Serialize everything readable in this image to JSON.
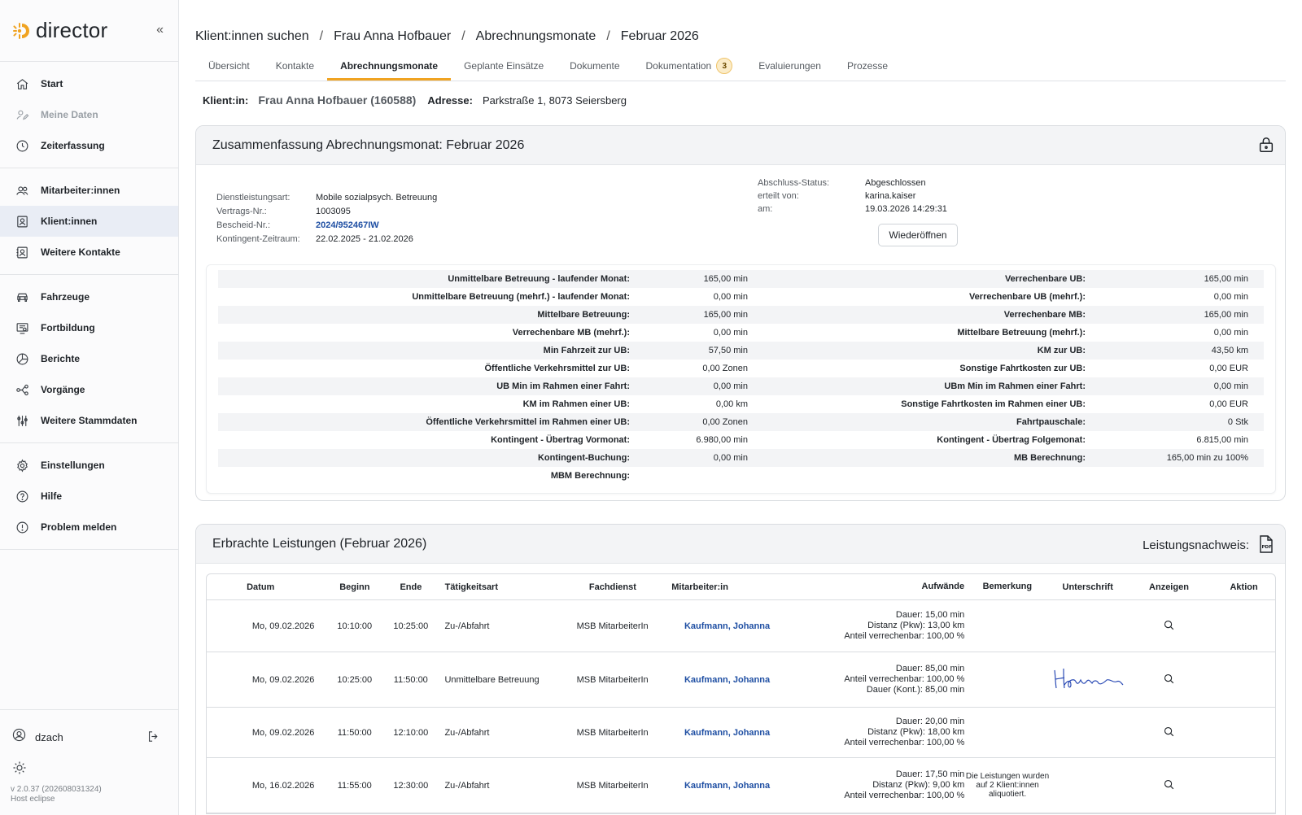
{
  "app": {
    "name": "director"
  },
  "sidebar": {
    "groups": [
      [
        {
          "label": "Start",
          "icon": "home-icon",
          "disabled": false,
          "active": false
        },
        {
          "label": "Meine Daten",
          "icon": "user-edit-icon",
          "disabled": true,
          "active": false
        },
        {
          "label": "Zeiterfassung",
          "icon": "clock-icon",
          "disabled": false,
          "active": false
        }
      ],
      [
        {
          "label": "Mitarbeiter:innen",
          "icon": "users-icon",
          "disabled": false,
          "active": false
        },
        {
          "label": "Klient:innen",
          "icon": "client-card-icon",
          "disabled": false,
          "active": true
        },
        {
          "label": "Weitere Kontakte",
          "icon": "contacts-icon",
          "disabled": false,
          "active": false
        }
      ],
      [
        {
          "label": "Fahrzeuge",
          "icon": "car-icon",
          "disabled": false,
          "active": false
        },
        {
          "label": "Fortbildung",
          "icon": "training-icon",
          "disabled": false,
          "active": false
        },
        {
          "label": "Berichte",
          "icon": "reports-icon",
          "disabled": false,
          "active": false
        },
        {
          "label": "Vorgänge",
          "icon": "workflow-icon",
          "disabled": false,
          "active": false
        },
        {
          "label": "Weitere Stammdaten",
          "icon": "sliders-icon",
          "disabled": false,
          "active": false
        }
      ],
      [
        {
          "label": "Einstellungen",
          "icon": "gear-icon",
          "disabled": false,
          "active": false
        },
        {
          "label": "Hilfe",
          "icon": "help-icon",
          "disabled": false,
          "active": false
        },
        {
          "label": "Problem melden",
          "icon": "alert-icon",
          "disabled": false,
          "active": false
        }
      ]
    ],
    "user": "dzach",
    "version": "v 2.0.37 (202608031324)",
    "host": "Host eclipse"
  },
  "breadcrumb": [
    "Klient:innen suchen",
    "Frau Anna Hofbauer",
    "Abrechnungsmonate",
    "Februar 2026"
  ],
  "tabs": [
    {
      "label": "Übersicht",
      "active": false
    },
    {
      "label": "Kontakte",
      "active": false
    },
    {
      "label": "Abrechnungsmonate",
      "active": true
    },
    {
      "label": "Geplante Einsätze",
      "active": false
    },
    {
      "label": "Dokumente",
      "active": false
    },
    {
      "label": "Dokumentation",
      "active": false,
      "badge": "3"
    },
    {
      "label": "Evaluierungen",
      "active": false
    },
    {
      "label": "Prozesse",
      "active": false
    }
  ],
  "client": {
    "label": "Klient:in:",
    "name": "Frau Anna Hofbauer (160588)",
    "address_label": "Adresse:",
    "address": "Parkstraße 1, 8073 Seiersberg"
  },
  "summary": {
    "title": "Zusammenfassung Abrechnungsmonat: Februar 2026",
    "meta_left": [
      {
        "k": "Dienstleistungsart:",
        "v": "Mobile sozialpsych. Betreuung",
        "link": false
      },
      {
        "k": "Vertrags-Nr.:",
        "v": "1003095",
        "link": false
      },
      {
        "k": "Bescheid-Nr.:",
        "v": "2024/952467IW",
        "link": true
      },
      {
        "k": "Kontingent-Zeitraum:",
        "v": "22.02.2025 - 21.02.2026",
        "link": false
      }
    ],
    "meta_right": [
      {
        "k": "Abschluss-Status:",
        "v": "Abgeschlossen"
      },
      {
        "k": "erteilt von:",
        "v": "karina.kaiser"
      },
      {
        "k": "am:",
        "v": "19.03.2026 14:29:31"
      }
    ],
    "reopen_label": "Wiederöffnen",
    "stats": [
      {
        "l": "Unmittelbare Betreuung - laufender Monat:",
        "lv": "165,00 min",
        "r": "Verrechenbare UB:",
        "rv": "165,00 min"
      },
      {
        "l": "Unmittelbare Betreuung (mehrf.) - laufender Monat:",
        "lv": "0,00 min",
        "r": "Verrechenbare UB (mehrf.):",
        "rv": "0,00 min"
      },
      {
        "l": "Mittelbare Betreuung:",
        "lv": "165,00 min",
        "r": "Verrechenbare MB:",
        "rv": "165,00 min"
      },
      {
        "l": "Verrechenbare MB (mehrf.):",
        "lv": "0,00 min",
        "r": "Mittelbare Betreuung (mehrf.):",
        "rv": "0,00 min"
      },
      {
        "l": "Min Fahrzeit zur UB:",
        "lv": "57,50 min",
        "r": "KM zur UB:",
        "rv": "43,50 km"
      },
      {
        "l": "Öffentliche Verkehrsmittel zur UB:",
        "lv": "0,00 Zonen",
        "r": "Sonstige Fahrtkosten zur UB:",
        "rv": "0,00 EUR"
      },
      {
        "l": "UB Min im Rahmen einer Fahrt:",
        "lv": "0,00 min",
        "r": "UBm Min im Rahmen einer Fahrt:",
        "rv": "0,00 min"
      },
      {
        "l": "KM im Rahmen einer UB:",
        "lv": "0,00 km",
        "r": "Sonstige Fahrtkosten im Rahmen einer UB:",
        "rv": "0,00 EUR"
      },
      {
        "l": "Öffentliche Verkehrsmittel im Rahmen einer UB:",
        "lv": "0,00 Zonen",
        "r": "Fahrtpauschale:",
        "rv": "0 Stk"
      },
      {
        "l": "Kontingent - Übertrag Vormonat:",
        "lv": "6.980,00 min",
        "r": "Kontingent - Übertrag Folgemonat:",
        "rv": "6.815,00 min"
      },
      {
        "l": "Kontingent-Buchung:",
        "lv": "0,00 min",
        "r": "MB Berechnung:",
        "rv": "165,00 min zu 100%"
      },
      {
        "l": "MBM Berechnung:",
        "lv": "",
        "r": "",
        "rv": ""
      }
    ]
  },
  "services": {
    "title": "Erbrachte Leistungen (Februar 2026)",
    "proof_label": "Leistungsnachweis:",
    "columns": {
      "date": "Datum",
      "begin": "Beginn",
      "end": "Ende",
      "activity": "Tätigkeitsart",
      "service": "Fachdienst",
      "employee": "Mitarbeiter:in",
      "effort": "Aufwände",
      "remark": "Bemerkung",
      "signature": "Unterschrift",
      "show": "Anzeigen",
      "action": "Aktion"
    },
    "rows": [
      {
        "date": "Mo, 09.02.2026",
        "begin": "10:10:00",
        "end": "10:25:00",
        "activity": "Zu-/Abfahrt",
        "service": "MSB MitarbeiterIn",
        "employee": "Kaufmann, Johanna",
        "effort": [
          "Dauer: 15,00 min",
          "Distanz (Pkw): 13,00 km",
          "Anteil verrechenbar: 100,00 %"
        ],
        "remark": "",
        "signed": false
      },
      {
        "date": "Mo, 09.02.2026",
        "begin": "10:25:00",
        "end": "11:50:00",
        "activity": "Unmittelbare Betreuung",
        "service": "MSB MitarbeiterIn",
        "employee": "Kaufmann, Johanna",
        "effort": [
          "Dauer: 85,00 min",
          "Anteil verrechenbar: 100,00 %",
          "Dauer (Kont.): 85,00 min"
        ],
        "remark": "",
        "signed": true
      },
      {
        "date": "Mo, 09.02.2026",
        "begin": "11:50:00",
        "end": "12:10:00",
        "activity": "Zu-/Abfahrt",
        "service": "MSB MitarbeiterIn",
        "employee": "Kaufmann, Johanna",
        "effort": [
          "Dauer: 20,00 min",
          "Distanz (Pkw): 18,00 km",
          "Anteil verrechenbar: 100,00 %"
        ],
        "remark": "",
        "signed": false
      },
      {
        "date": "Mo, 16.02.2026",
        "begin": "11:55:00",
        "end": "12:30:00",
        "activity": "Zu-/Abfahrt",
        "service": "MSB MitarbeiterIn",
        "employee": "Kaufmann, Johanna",
        "effort": [
          "Dauer: 17,50 min",
          "Distanz (Pkw): 9,00 km",
          "Anteil verrechenbar: 100,00 %"
        ],
        "remark": "Die Leistungen wurden auf 2 Klient:innen aliquotiert.",
        "signed": false
      }
    ]
  },
  "colors": {
    "accent": "#f0a321",
    "link": "#1f4fa3",
    "active_nav": "#e9edf5"
  }
}
